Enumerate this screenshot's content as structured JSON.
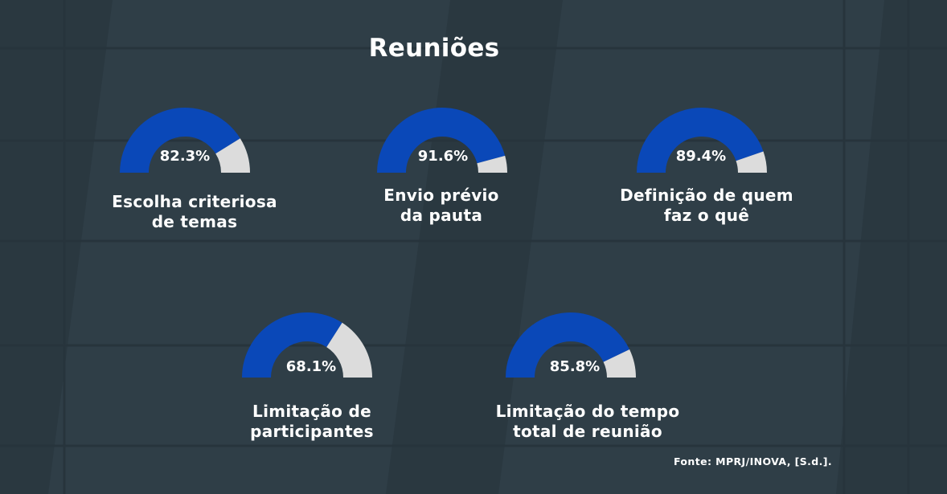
{
  "title": "Reuniões",
  "source": "Fonte: MPRJ/INOVA, [S.d.].",
  "colors": {
    "background": "#2f3e47",
    "filled": "#0a48b8",
    "remaining": "#dcdcdc",
    "text": "#ffffff"
  },
  "chart_data": {
    "type": "gauge",
    "title": "Reuniões",
    "unit": "%",
    "range": [
      0,
      100
    ],
    "items": [
      {
        "value": 82.3,
        "value_label": "82.3%",
        "label_lines": [
          "Escolha criteriosa",
          "de temas"
        ]
      },
      {
        "value": 91.6,
        "value_label": "91.6%",
        "label_lines": [
          "Envio prévio",
          "da pauta"
        ]
      },
      {
        "value": 89.4,
        "value_label": "89.4%",
        "label_lines": [
          "Definição de quem",
          "faz o quê"
        ]
      },
      {
        "value": 68.1,
        "value_label": "68.1%",
        "label_lines": [
          "Limitação de",
          "participantes"
        ]
      },
      {
        "value": 85.8,
        "value_label": "85.8%",
        "label_lines": [
          "Limitação do tempo",
          "total de reunião"
        ]
      }
    ]
  }
}
